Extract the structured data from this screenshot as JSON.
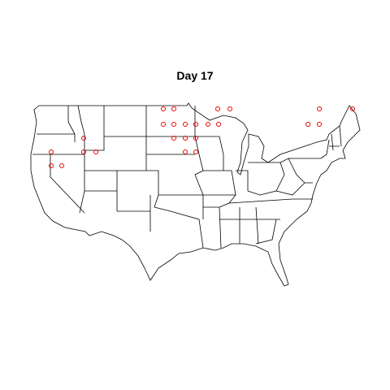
{
  "map": {
    "title": "Day 17"
  }
}
